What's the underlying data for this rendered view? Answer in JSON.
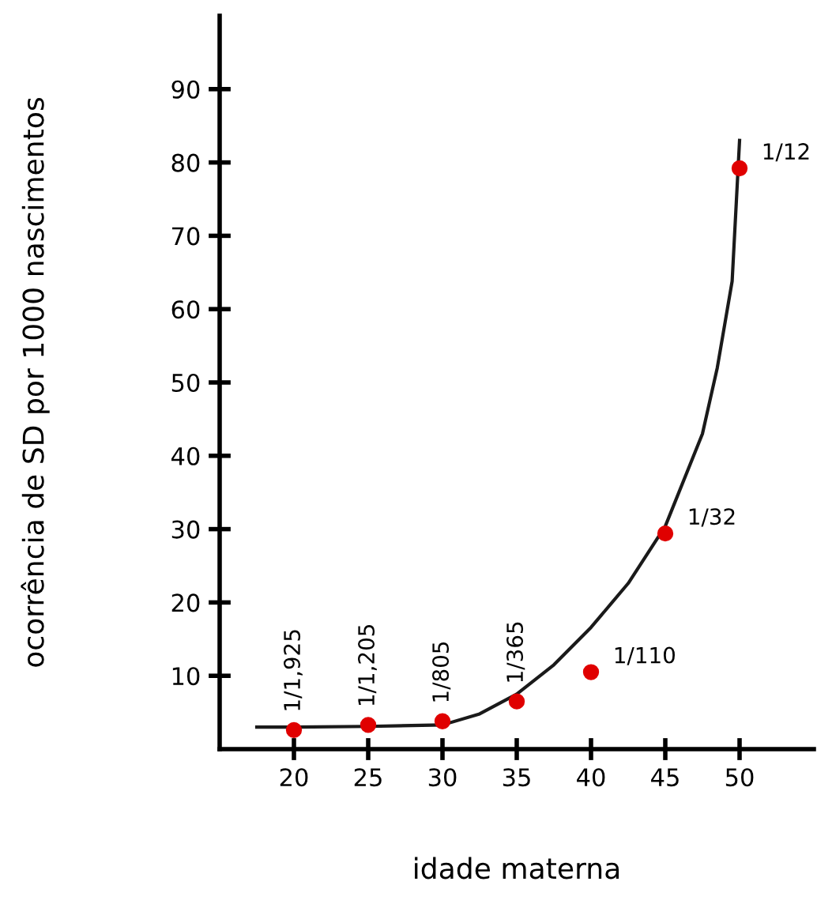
{
  "chart_data": {
    "type": "scatter",
    "xlabel": "idade materna",
    "ylabel": "ocorrência de SD por 1000 nascimentos",
    "xlim": [
      15,
      55
    ],
    "ylim": [
      0,
      100
    ],
    "xticks": [
      20,
      25,
      30,
      35,
      40,
      45,
      50
    ],
    "yticks": [
      10,
      20,
      30,
      40,
      50,
      60,
      70,
      80,
      90
    ],
    "grid": false,
    "series": [
      {
        "type": "line",
        "color": "#1a1a1a",
        "marker": "none",
        "x": [
          17.5,
          20,
          25,
          30,
          32.5,
          35,
          37.5,
          40,
          42.5,
          45,
          47.5,
          48.5,
          49.5,
          50
        ],
        "values": [
          3.0,
          3.0,
          3.1,
          3.3,
          4.8,
          7.5,
          11.5,
          16.6,
          22.6,
          30.4,
          43,
          52,
          63.8,
          83
        ]
      },
      {
        "color": "#e00000",
        "marker": "circle",
        "x": [
          20,
          25,
          30,
          35,
          40,
          45,
          50
        ],
        "values": [
          2.6,
          3.3,
          3.8,
          6.5,
          10.5,
          29.4,
          79.2
        ]
      }
    ],
    "annotations": [
      {
        "text": "1/1,925",
        "x": 20,
        "y": 2.6
      },
      {
        "text": "1/1,205",
        "x": 25,
        "y": 3.3
      },
      {
        "text": "1/805",
        "x": 30,
        "y": 3.8
      },
      {
        "text": "1/365",
        "x": 35,
        "y": 6.5
      },
      {
        "text": "1/110",
        "x": 40,
        "y": 10.5
      },
      {
        "text": "1/32",
        "x": 45,
        "y": 29.4
      },
      {
        "text": "1/12",
        "x": 50,
        "y": 79.2
      }
    ]
  }
}
